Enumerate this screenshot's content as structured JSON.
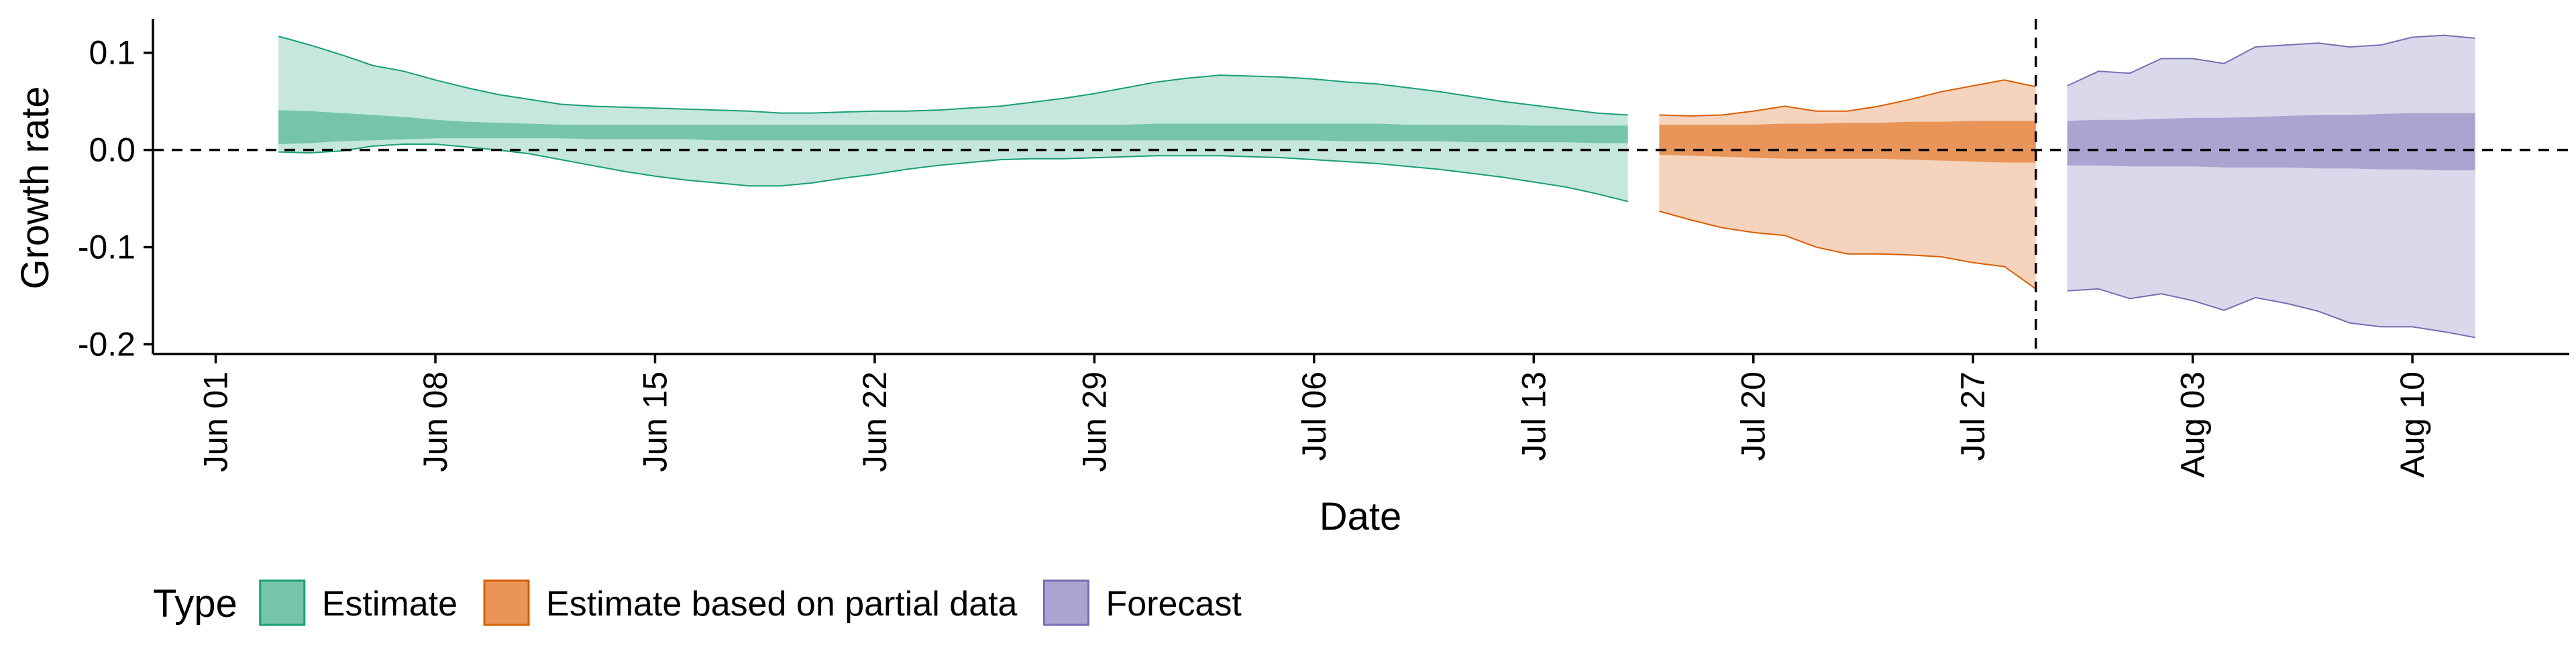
{
  "chart_data": {
    "type": "area",
    "xlabel": "Date",
    "ylabel": "Growth rate",
    "xlim": [
      "2020-05-30",
      "2020-08-15"
    ],
    "ylim": [
      -0.21,
      0.135
    ],
    "y_ticks": [
      {
        "value": 0.1,
        "label": "0.1"
      },
      {
        "value": 0.0,
        "label": "0.0"
      },
      {
        "value": -0.1,
        "label": "-0.1"
      },
      {
        "value": -0.2,
        "label": "-0.2"
      }
    ],
    "x_ticks": [
      {
        "date": "2020-06-01",
        "label": "Jun 01"
      },
      {
        "date": "2020-06-08",
        "label": "Jun 08"
      },
      {
        "date": "2020-06-15",
        "label": "Jun 15"
      },
      {
        "date": "2020-06-22",
        "label": "Jun 22"
      },
      {
        "date": "2020-06-29",
        "label": "Jun 29"
      },
      {
        "date": "2020-07-06",
        "label": "Jul 06"
      },
      {
        "date": "2020-07-13",
        "label": "Jul 13"
      },
      {
        "date": "2020-07-20",
        "label": "Jul 20"
      },
      {
        "date": "2020-07-27",
        "label": "Jul 27"
      },
      {
        "date": "2020-08-03",
        "label": "Aug 03"
      },
      {
        "date": "2020-08-10",
        "label": "Aug 10"
      }
    ],
    "reference_lines": {
      "horizontal_y": 0.0,
      "vertical_date": "2020-07-29"
    },
    "grid": false,
    "legend": {
      "title": "Type",
      "position": "bottom-left"
    },
    "series": [
      {
        "name": "Estimate",
        "color": "#1b9e77",
        "outer_fill": "#c5e7dd",
        "inner_fill": "#76c5aa",
        "dates": [
          "2020-06-03",
          "2020-06-04",
          "2020-06-05",
          "2020-06-06",
          "2020-06-07",
          "2020-06-08",
          "2020-06-09",
          "2020-06-10",
          "2020-06-11",
          "2020-06-12",
          "2020-06-13",
          "2020-06-14",
          "2020-06-15",
          "2020-06-16",
          "2020-06-17",
          "2020-06-18",
          "2020-06-19",
          "2020-06-20",
          "2020-06-21",
          "2020-06-22",
          "2020-06-23",
          "2020-06-24",
          "2020-06-25",
          "2020-06-26",
          "2020-06-27",
          "2020-06-28",
          "2020-06-29",
          "2020-06-30",
          "2020-07-01",
          "2020-07-02",
          "2020-07-03",
          "2020-07-04",
          "2020-07-05",
          "2020-07-06",
          "2020-07-07",
          "2020-07-08",
          "2020-07-09",
          "2020-07-10",
          "2020-07-11",
          "2020-07-12",
          "2020-07-13",
          "2020-07-14",
          "2020-07-15",
          "2020-07-16"
        ],
        "upper_90": [
          0.117,
          0.108,
          0.098,
          0.087,
          0.081,
          0.072,
          0.064,
          0.057,
          0.052,
          0.047,
          0.045,
          0.044,
          0.043,
          0.042,
          0.041,
          0.04,
          0.038,
          0.038,
          0.039,
          0.04,
          0.04,
          0.041,
          0.043,
          0.045,
          0.049,
          0.053,
          0.058,
          0.064,
          0.07,
          0.074,
          0.077,
          0.076,
          0.075,
          0.073,
          0.07,
          0.068,
          0.064,
          0.06,
          0.055,
          0.05,
          0.046,
          0.042,
          0.038,
          0.036
        ],
        "upper_50": [
          0.041,
          0.04,
          0.038,
          0.036,
          0.034,
          0.031,
          0.029,
          0.028,
          0.027,
          0.026,
          0.026,
          0.026,
          0.026,
          0.026,
          0.026,
          0.026,
          0.026,
          0.026,
          0.026,
          0.026,
          0.026,
          0.026,
          0.026,
          0.026,
          0.026,
          0.026,
          0.026,
          0.026,
          0.027,
          0.027,
          0.027,
          0.027,
          0.027,
          0.027,
          0.027,
          0.027,
          0.026,
          0.026,
          0.026,
          0.026,
          0.025,
          0.025,
          0.025,
          0.025
        ],
        "lower_50": [
          0.006,
          0.007,
          0.009,
          0.01,
          0.011,
          0.012,
          0.012,
          0.012,
          0.012,
          0.012,
          0.011,
          0.011,
          0.011,
          0.011,
          0.01,
          0.01,
          0.01,
          0.01,
          0.01,
          0.01,
          0.01,
          0.01,
          0.01,
          0.01,
          0.01,
          0.01,
          0.01,
          0.01,
          0.01,
          0.01,
          0.01,
          0.01,
          0.01,
          0.01,
          0.009,
          0.009,
          0.009,
          0.009,
          0.008,
          0.008,
          0.008,
          0.008,
          0.007,
          0.007
        ],
        "lower_90": [
          -0.002,
          -0.003,
          -0.001,
          0.004,
          0.006,
          0.006,
          0.003,
          0.0,
          -0.004,
          -0.01,
          -0.016,
          -0.022,
          -0.027,
          -0.031,
          -0.034,
          -0.037,
          -0.037,
          -0.034,
          -0.029,
          -0.025,
          -0.02,
          -0.016,
          -0.013,
          -0.01,
          -0.009,
          -0.009,
          -0.008,
          -0.007,
          -0.006,
          -0.006,
          -0.006,
          -0.007,
          -0.008,
          -0.01,
          -0.012,
          -0.014,
          -0.017,
          -0.02,
          -0.024,
          -0.028,
          -0.033,
          -0.038,
          -0.045,
          -0.053
        ]
      },
      {
        "name": "Estimate based on partial data",
        "color": "#d95f02",
        "outer_fill": "#f5d3bc",
        "inner_fill": "#e9955a",
        "dates": [
          "2020-07-17",
          "2020-07-18",
          "2020-07-19",
          "2020-07-20",
          "2020-07-21",
          "2020-07-22",
          "2020-07-23",
          "2020-07-24",
          "2020-07-25",
          "2020-07-26",
          "2020-07-27",
          "2020-07-28",
          "2020-07-29"
        ],
        "upper_90": [
          0.036,
          0.035,
          0.036,
          0.04,
          0.045,
          0.04,
          0.04,
          0.045,
          0.052,
          0.06,
          0.066,
          0.072,
          0.065
        ],
        "upper_50": [
          0.026,
          0.026,
          0.026,
          0.026,
          0.027,
          0.027,
          0.028,
          0.028,
          0.029,
          0.029,
          0.03,
          0.03,
          0.03
        ],
        "lower_50": [
          -0.005,
          -0.006,
          -0.007,
          -0.008,
          -0.009,
          -0.009,
          -0.009,
          -0.009,
          -0.01,
          -0.011,
          -0.012,
          -0.013,
          -0.013
        ],
        "lower_90": [
          -0.063,
          -0.072,
          -0.08,
          -0.085,
          -0.088,
          -0.1,
          -0.107,
          -0.107,
          -0.108,
          -0.11,
          -0.116,
          -0.12,
          -0.143
        ]
      },
      {
        "name": "Forecast",
        "color": "#7570b3",
        "outer_fill": "#dad9eb",
        "inner_fill": "#a9a5d0",
        "dates": [
          "2020-07-30",
          "2020-07-31",
          "2020-08-01",
          "2020-08-02",
          "2020-08-03",
          "2020-08-04",
          "2020-08-05",
          "2020-08-06",
          "2020-08-07",
          "2020-08-08",
          "2020-08-09",
          "2020-08-10",
          "2020-08-11",
          "2020-08-12"
        ],
        "upper_90": [
          0.066,
          0.081,
          0.079,
          0.094,
          0.094,
          0.089,
          0.106,
          0.108,
          0.11,
          0.106,
          0.108,
          0.116,
          0.118,
          0.115
        ],
        "upper_50": [
          0.03,
          0.031,
          0.031,
          0.032,
          0.033,
          0.033,
          0.034,
          0.035,
          0.036,
          0.036,
          0.037,
          0.038,
          0.038,
          0.038
        ],
        "lower_50": [
          -0.016,
          -0.016,
          -0.017,
          -0.017,
          -0.017,
          -0.018,
          -0.018,
          -0.018,
          -0.019,
          -0.019,
          -0.02,
          -0.02,
          -0.021,
          -0.021
        ],
        "lower_90": [
          -0.145,
          -0.143,
          -0.153,
          -0.148,
          -0.155,
          -0.165,
          -0.152,
          -0.158,
          -0.166,
          -0.178,
          -0.182,
          -0.182,
          -0.187,
          -0.193
        ]
      }
    ]
  }
}
